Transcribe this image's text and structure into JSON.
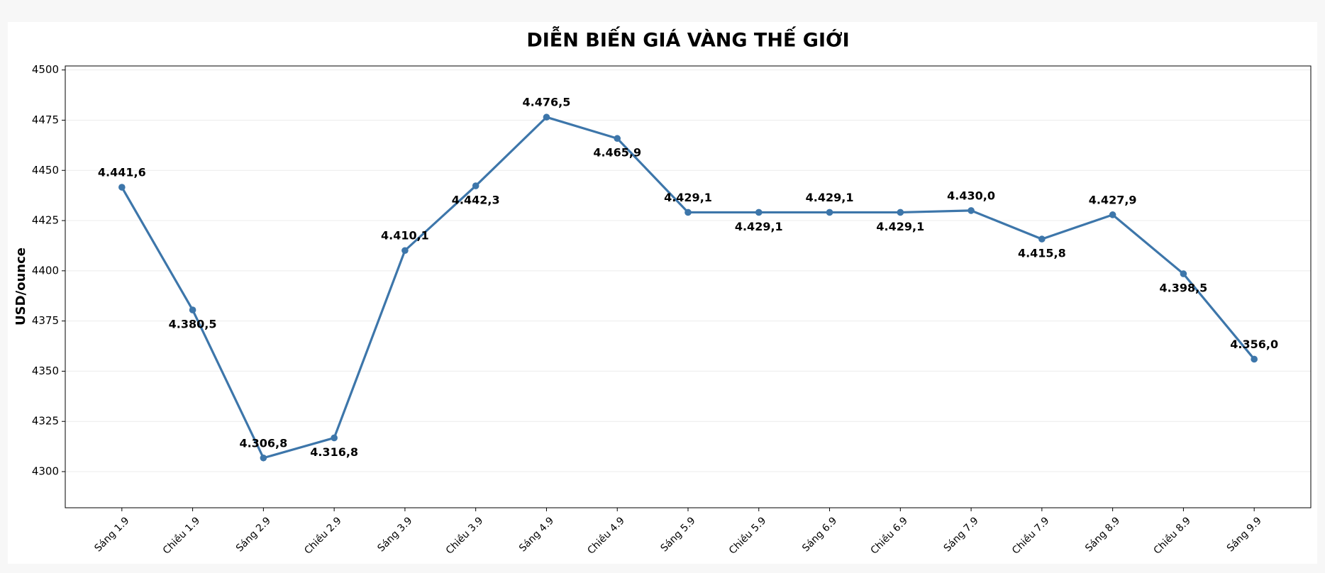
{
  "chart_data": {
    "type": "line",
    "title": "DIỄN BIẾN GIÁ VÀNG THẾ GIỚI",
    "y_label": "USD/ounce",
    "categories": [
      "Sáng 1.9",
      "Chiều 1.9",
      "Sáng 2.9",
      "Chiều 2.9",
      "Sáng 3.9",
      "Chiều 3.9",
      "Sáng 4.9",
      "Chiều 4.9",
      "Sáng 5.9",
      "Chiều 5.9",
      "Sáng 6.9",
      "Chiều 6.9",
      "Sáng 7.9",
      "Chiều 7.9",
      "Sáng 8.9",
      "Chiều 8.9",
      "Sáng 9.9"
    ],
    "values": [
      4441.6,
      4380.5,
      4306.8,
      4316.8,
      4410.1,
      4442.3,
      4476.5,
      4465.9,
      4429.1,
      4429.1,
      4429.1,
      4429.1,
      4430.0,
      4415.8,
      4427.9,
      4398.5,
      4356.0
    ],
    "value_labels": [
      "4.441,6",
      "4.380,5",
      "4.306,8",
      "4.316,8",
      "4.410,1",
      "4.442,3",
      "4.476,5",
      "4.465,9",
      "4.429,1",
      "4.429,1",
      "4.429,1",
      "4.429,1",
      "4.430,0",
      "4.415,8",
      "4.427,9",
      "4.398,5",
      "4.356,0"
    ],
    "color": "#3d76aa",
    "ylim": [
      4282,
      4502
    ],
    "yticks": [
      4300,
      4325,
      4350,
      4375,
      4400,
      4425,
      4450,
      4475,
      4500
    ],
    "grid": true
  }
}
